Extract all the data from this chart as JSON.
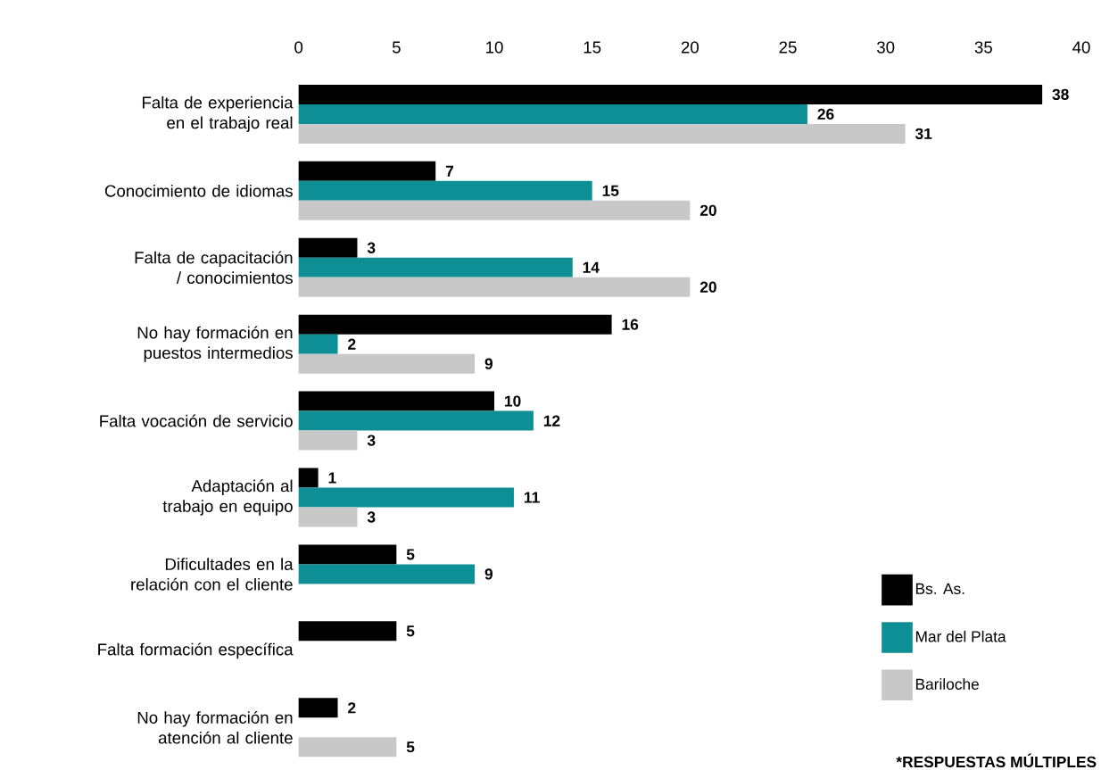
{
  "chart_data": {
    "type": "bar",
    "orientation": "horizontal",
    "categories": [
      "Falta de experiencia en el trabajo real",
      "Conocimiento de idiomas",
      "Falta de capacitación / conocimientos",
      "No hay formación en puestos intermedios",
      "Falta vocación de servicio",
      "Adaptación al trabajo en equipo",
      "Dificultades en la relación con el cliente",
      "Falta formación específica",
      "No hay formación en atención al cliente"
    ],
    "series": [
      {
        "name": "Bs. As.",
        "color": "#000000",
        "values": [
          38,
          7,
          3,
          16,
          10,
          1,
          5,
          5,
          2
        ]
      },
      {
        "name": "Mar del Plata",
        "color": "#0e8f95",
        "values": [
          26,
          15,
          14,
          2,
          12,
          11,
          9,
          null,
          null
        ]
      },
      {
        "name": "Bariloche",
        "color": "#c8c8c8",
        "values": [
          31,
          20,
          20,
          9,
          3,
          3,
          null,
          null,
          5
        ]
      }
    ],
    "xlim": [
      0,
      40
    ],
    "xticks": [
      0,
      5,
      10,
      15,
      20,
      25,
      30,
      35,
      40
    ],
    "data_labels": true,
    "grid": false,
    "legend": "bottom right",
    "annotations": [
      "*RESPUESTAS MÚLTIPLES"
    ]
  }
}
